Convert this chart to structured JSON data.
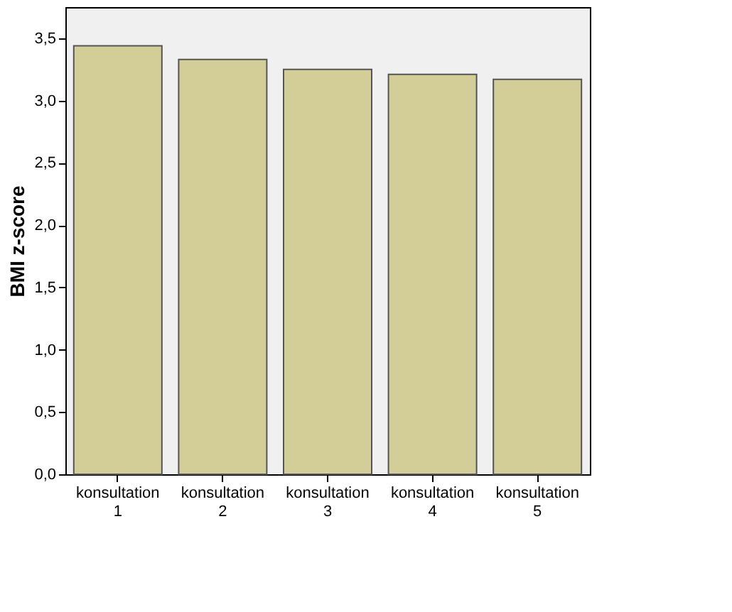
{
  "chart_data": {
    "type": "bar",
    "ylabel": "BMI z-score",
    "categories": [
      "konsultation 1",
      "konsultation 2",
      "konsultation 3",
      "konsultation 4",
      "konsultation 5"
    ],
    "values": [
      3.44,
      3.33,
      3.25,
      3.21,
      3.17
    ],
    "color": "#d3ce97",
    "ylim": [
      0,
      3.75
    ],
    "yticks": [
      {
        "value": 0,
        "label": "0,0"
      },
      {
        "value": 0.5,
        "label": "0,5"
      },
      {
        "value": 1,
        "label": "1,0"
      },
      {
        "value": 1.5,
        "label": "1,5"
      },
      {
        "value": 2,
        "label": "2,0"
      },
      {
        "value": 2.5,
        "label": "2,5"
      },
      {
        "value": 3,
        "label": "3,0"
      },
      {
        "value": 3.5,
        "label": "3,5"
      }
    ],
    "grid": false
  }
}
